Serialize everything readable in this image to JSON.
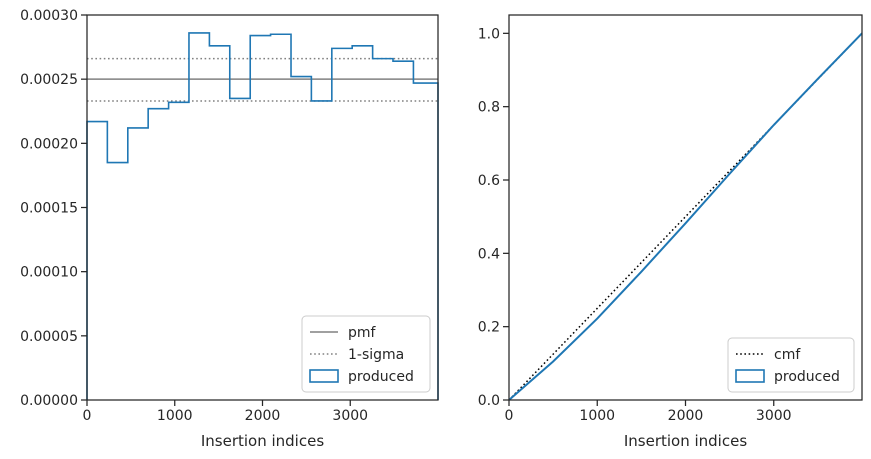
{
  "chart_data": [
    {
      "type": "histogram-step",
      "xlabel": "Insertion indices",
      "ylabel": "",
      "xlim": [
        0,
        4000
      ],
      "ylim": [
        0,
        0.0003
      ],
      "xticks": [
        0,
        1000,
        2000,
        3000
      ],
      "xtick_labels": [
        "0",
        "1000",
        "2000",
        "3000"
      ],
      "yticks": [
        0,
        5e-05,
        0.0001,
        0.00015,
        0.0002,
        0.00025,
        0.0003
      ],
      "ytick_labels": [
        "0.00000",
        "0.00005",
        "0.00010",
        "0.00015",
        "0.00020",
        "0.00025",
        "0.00030"
      ],
      "bin_edges": [
        0,
        232,
        465,
        697,
        930,
        1162,
        1395,
        1627,
        1860,
        2092,
        2325,
        2557,
        2790,
        3022,
        3255,
        3487,
        3720,
        4000
      ],
      "produced": [
        0.000217,
        0.000185,
        0.000212,
        0.000227,
        0.000232,
        0.000286,
        0.000276,
        0.000235,
        0.000284,
        0.000285,
        0.000252,
        0.000233,
        0.000274,
        0.000276,
        0.000266,
        0.000264,
        0.000247
      ],
      "pmf": 0.00025,
      "sigma_band": [
        0.000233,
        0.000266
      ],
      "legend_position": "lower right",
      "legend": [
        {
          "label": "pmf",
          "style": "solid",
          "color": "#808080"
        },
        {
          "label": "1-sigma",
          "style": "dotted",
          "color": "#808080"
        },
        {
          "label": "produced",
          "style": "patch",
          "color": "#1f77b4"
        }
      ]
    },
    {
      "type": "line",
      "xlabel": "Insertion indices",
      "ylabel": "",
      "xlim": [
        0,
        4000
      ],
      "ylim": [
        0,
        1.05
      ],
      "xticks": [
        0,
        1000,
        2000,
        3000
      ],
      "xtick_labels": [
        "0",
        "1000",
        "2000",
        "3000"
      ],
      "yticks": [
        0,
        0.2,
        0.4,
        0.6,
        0.8,
        1.0
      ],
      "ytick_labels": [
        "0.0",
        "0.2",
        "0.4",
        "0.6",
        "0.8",
        "1.0"
      ],
      "cmf": {
        "x": [
          0,
          4000
        ],
        "y": [
          0,
          1.0
        ]
      },
      "produced": {
        "x": [
          0,
          500,
          1000,
          1500,
          2000,
          2500,
          3000,
          3500,
          4000
        ],
        "y": [
          0,
          0.105,
          0.222,
          0.35,
          0.482,
          0.617,
          0.75,
          0.876,
          1.0
        ]
      },
      "legend_position": "lower right",
      "legend": [
        {
          "label": "cmf",
          "style": "dotted",
          "color": "#000000"
        },
        {
          "label": "produced",
          "style": "patch",
          "color": "#1f77b4"
        }
      ]
    }
  ]
}
